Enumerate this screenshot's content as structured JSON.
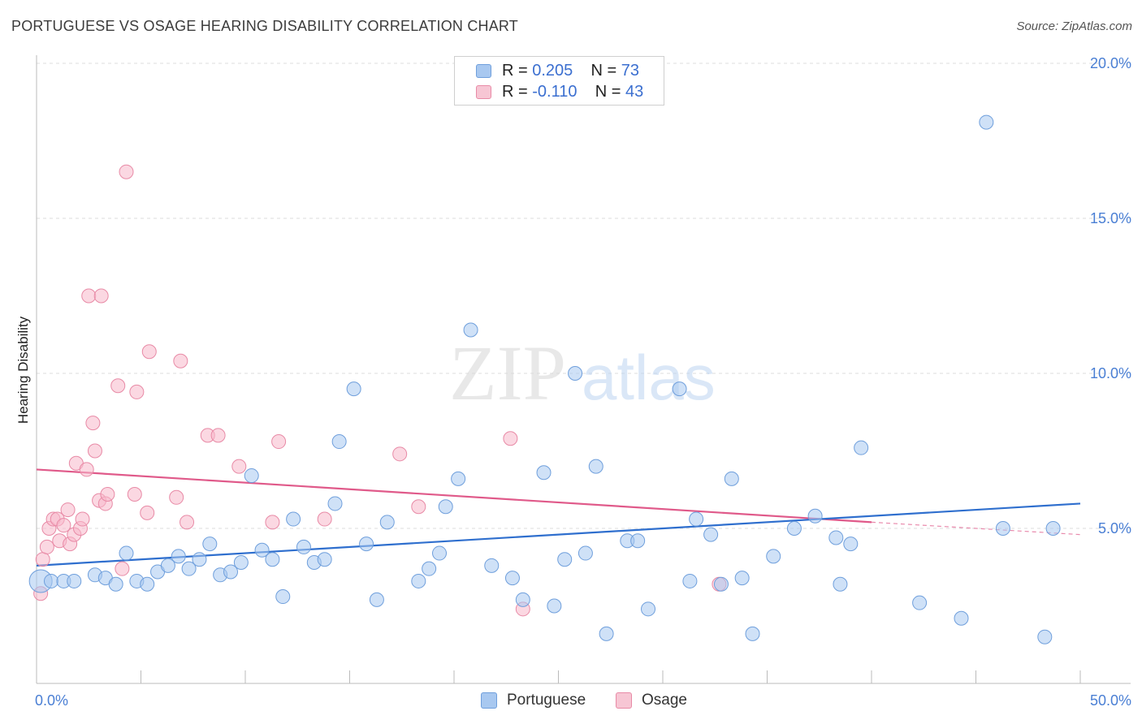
{
  "title": "PORTUGUESE VS OSAGE HEARING DISABILITY CORRELATION CHART",
  "source": "Source: ZipAtlas.com",
  "watermark": {
    "zip": "ZIP",
    "atlas": "atlas"
  },
  "legend": {
    "rows": [
      {
        "r_label": "R = ",
        "r_value": "0.205",
        "n_label": "N = ",
        "n_value": "73"
      },
      {
        "r_label": "R = ",
        "r_value": "-0.110",
        "n_label": "N = ",
        "n_value": "43"
      }
    ]
  },
  "bottom_legend": {
    "portuguese": "Portuguese",
    "osage": "Osage"
  },
  "colors": {
    "portuguese_fill": "#a8c8f0",
    "portuguese_stroke": "#6f9fdc",
    "portuguese_line": "#2f6fce",
    "osage_fill": "#f7b8cb",
    "osage_stroke": "#e88aa6",
    "osage_line": "#e05a8a",
    "tick": "#4a7fd4"
  },
  "chart_data": {
    "type": "scatter",
    "title": "PORTUGUESE VS OSAGE HEARING DISABILITY CORRELATION CHART",
    "xlabel": "",
    "ylabel": "Hearing Disability",
    "xlim": [
      0,
      50
    ],
    "ylim": [
      0,
      20.7
    ],
    "x_tick_labels": [
      {
        "value": 0,
        "label": "0.0%"
      },
      {
        "value": 50,
        "label": "50.0%"
      }
    ],
    "y_tick_labels": [
      {
        "value": 5,
        "label": "5.0%"
      },
      {
        "value": 10,
        "label": "10.0%"
      },
      {
        "value": 15,
        "label": "15.0%"
      },
      {
        "value": 20,
        "label": "20.0%"
      }
    ],
    "series": [
      {
        "name": "Portuguese",
        "r": 0.205,
        "n": 73,
        "trend": {
          "x": [
            0,
            50
          ],
          "y": [
            3.8,
            5.8
          ]
        },
        "points": [
          [
            0.2,
            3.3
          ],
          [
            0.7,
            3.3
          ],
          [
            1.3,
            3.3
          ],
          [
            1.8,
            3.3
          ],
          [
            2.8,
            3.5
          ],
          [
            3.3,
            3.4
          ],
          [
            3.8,
            3.2
          ],
          [
            4.3,
            4.2
          ],
          [
            4.8,
            3.3
          ],
          [
            5.3,
            3.2
          ],
          [
            5.8,
            3.6
          ],
          [
            6.3,
            3.8
          ],
          [
            6.8,
            4.1
          ],
          [
            7.3,
            3.7
          ],
          [
            7.8,
            4.0
          ],
          [
            8.3,
            4.5
          ],
          [
            8.8,
            3.5
          ],
          [
            9.3,
            3.6
          ],
          [
            9.8,
            3.9
          ],
          [
            10.3,
            6.7
          ],
          [
            10.8,
            4.3
          ],
          [
            11.3,
            4.0
          ],
          [
            11.8,
            2.8
          ],
          [
            12.3,
            5.3
          ],
          [
            12.8,
            4.4
          ],
          [
            13.3,
            3.9
          ],
          [
            13.8,
            4.0
          ],
          [
            14.3,
            5.8
          ],
          [
            14.5,
            7.8
          ],
          [
            15.2,
            9.5
          ],
          [
            15.8,
            4.5
          ],
          [
            16.3,
            2.7
          ],
          [
            16.8,
            5.2
          ],
          [
            18.3,
            3.3
          ],
          [
            18.8,
            3.7
          ],
          [
            19.3,
            4.2
          ],
          [
            19.6,
            5.7
          ],
          [
            20.2,
            6.6
          ],
          [
            20.8,
            11.4
          ],
          [
            21.8,
            3.8
          ],
          [
            22.8,
            3.4
          ],
          [
            23.3,
            2.7
          ],
          [
            24.3,
            6.8
          ],
          [
            24.8,
            2.5
          ],
          [
            25.3,
            4.0
          ],
          [
            25.8,
            10.0
          ],
          [
            26.3,
            4.2
          ],
          [
            26.8,
            7.0
          ],
          [
            27.3,
            1.6
          ],
          [
            28.3,
            4.6
          ],
          [
            28.8,
            4.6
          ],
          [
            29.3,
            2.4
          ],
          [
            30.8,
            9.5
          ],
          [
            31.3,
            3.3
          ],
          [
            31.6,
            5.3
          ],
          [
            32.3,
            4.8
          ],
          [
            32.8,
            3.2
          ],
          [
            33.3,
            6.6
          ],
          [
            33.8,
            3.4
          ],
          [
            34.3,
            1.6
          ],
          [
            35.3,
            4.1
          ],
          [
            36.3,
            5.0
          ],
          [
            37.3,
            5.4
          ],
          [
            38.3,
            4.7
          ],
          [
            38.5,
            3.2
          ],
          [
            39.0,
            4.5
          ],
          [
            39.5,
            7.6
          ],
          [
            42.3,
            2.6
          ],
          [
            44.3,
            2.1
          ],
          [
            45.5,
            18.1
          ],
          [
            46.3,
            5.0
          ],
          [
            48.3,
            1.5
          ],
          [
            48.7,
            5.0
          ]
        ]
      },
      {
        "name": "Osage",
        "r": -0.11,
        "n": 43,
        "trend": {
          "x": [
            0,
            40
          ],
          "y": [
            6.9,
            5.2
          ]
        },
        "trend_dashed": {
          "x": [
            40,
            50
          ],
          "y": [
            5.2,
            4.8
          ]
        },
        "points": [
          [
            0.2,
            2.9
          ],
          [
            0.3,
            4.0
          ],
          [
            0.5,
            4.4
          ],
          [
            0.6,
            5.0
          ],
          [
            0.8,
            5.3
          ],
          [
            1.0,
            5.3
          ],
          [
            1.1,
            4.6
          ],
          [
            1.3,
            5.1
          ],
          [
            1.5,
            5.6
          ],
          [
            1.6,
            4.5
          ],
          [
            1.8,
            4.8
          ],
          [
            1.9,
            7.1
          ],
          [
            2.1,
            5.0
          ],
          [
            2.2,
            5.3
          ],
          [
            2.4,
            6.9
          ],
          [
            2.5,
            12.5
          ],
          [
            2.7,
            8.4
          ],
          [
            2.8,
            7.5
          ],
          [
            3.0,
            5.9
          ],
          [
            3.1,
            12.5
          ],
          [
            3.3,
            5.8
          ],
          [
            3.4,
            6.1
          ],
          [
            3.9,
            9.6
          ],
          [
            4.1,
            3.7
          ],
          [
            4.3,
            16.5
          ],
          [
            4.7,
            6.1
          ],
          [
            4.8,
            9.4
          ],
          [
            5.3,
            5.5
          ],
          [
            5.4,
            10.7
          ],
          [
            6.7,
            6.0
          ],
          [
            6.9,
            10.4
          ],
          [
            7.2,
            5.2
          ],
          [
            8.2,
            8.0
          ],
          [
            8.7,
            8.0
          ],
          [
            9.7,
            7.0
          ],
          [
            11.3,
            5.2
          ],
          [
            11.6,
            7.8
          ],
          [
            13.8,
            5.3
          ],
          [
            17.4,
            7.4
          ],
          [
            18.3,
            5.7
          ],
          [
            22.7,
            7.9
          ],
          [
            23.3,
            2.4
          ],
          [
            32.7,
            3.2
          ]
        ]
      }
    ]
  }
}
